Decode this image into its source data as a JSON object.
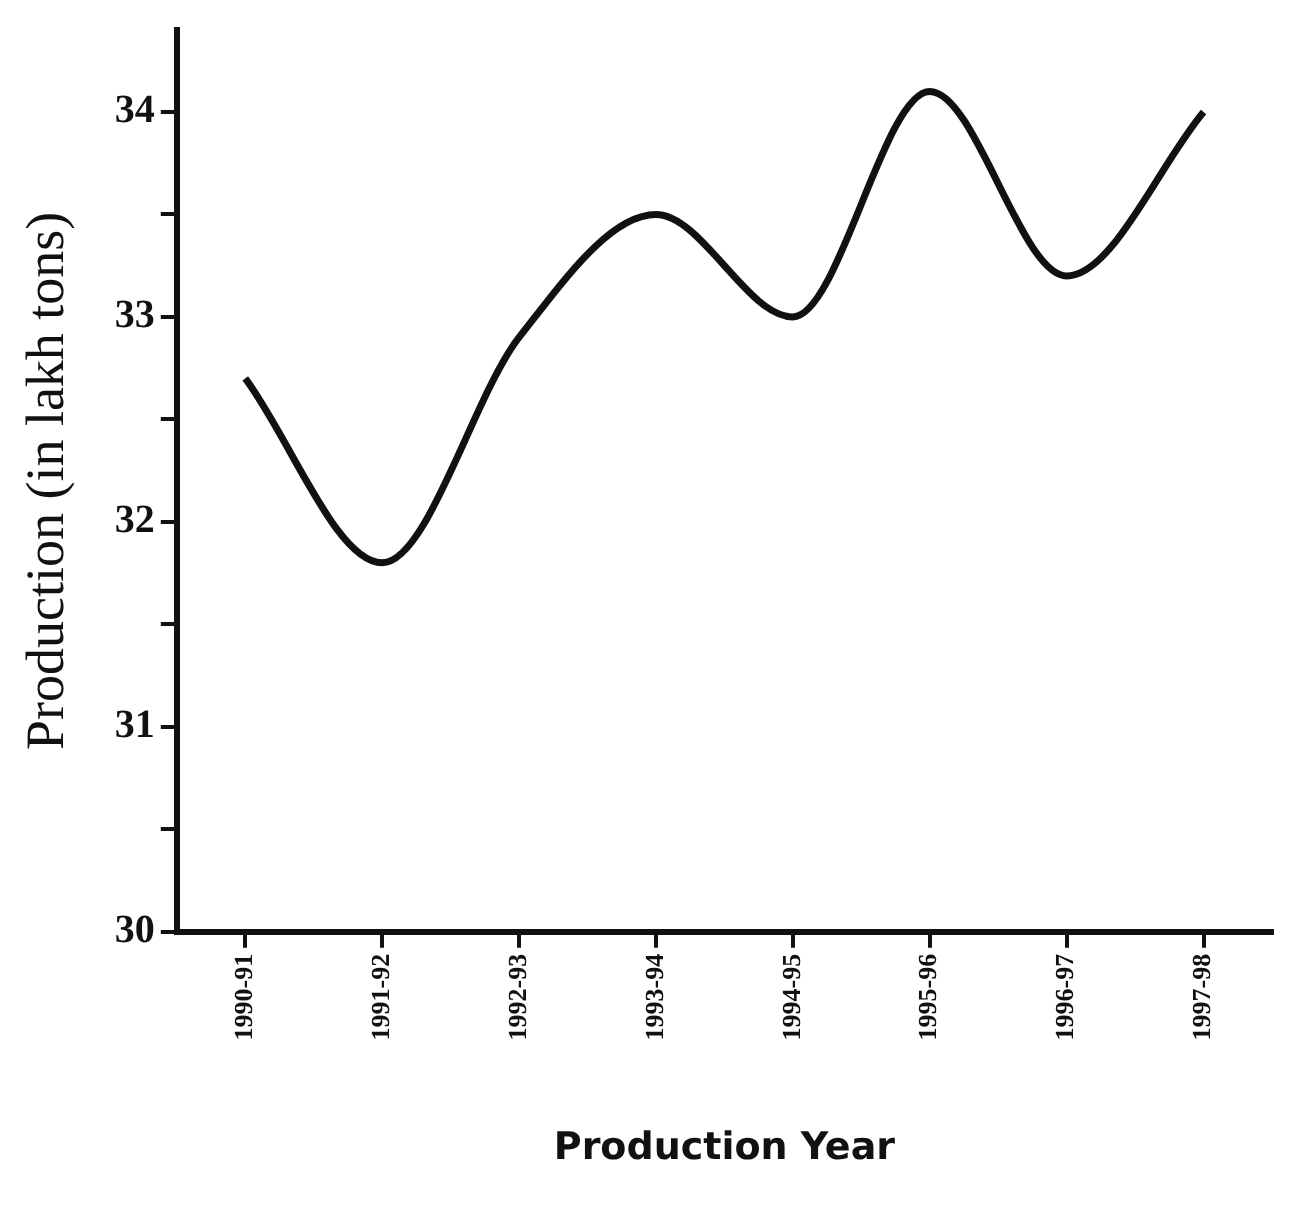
{
  "chart_data": {
    "type": "line",
    "xlabel": "Production Year",
    "ylabel": "Production (in lakh tons)",
    "categories": [
      "1990-91",
      "1991-92",
      "1992-93",
      "1993-94",
      "1994-95",
      "1995-96",
      "1996-97",
      "1997-98"
    ],
    "series": [
      {
        "color": "#111111",
        "values": [
          32.7,
          31.8,
          32.9,
          33.5,
          33.0,
          34.1,
          33.2,
          34.0
        ]
      }
    ],
    "ylim": [
      30,
      34.4
    ],
    "yticks": [
      30,
      {
        "value": 30.5,
        "label": null
      },
      31,
      {
        "value": 31.5,
        "label": null
      },
      32,
      {
        "value": 32.5,
        "label": null
      },
      33,
      {
        "value": 33.5,
        "label": null
      },
      34
    ],
    "grid": false,
    "legend": false,
    "marker": "none",
    "line_style": "solid"
  }
}
